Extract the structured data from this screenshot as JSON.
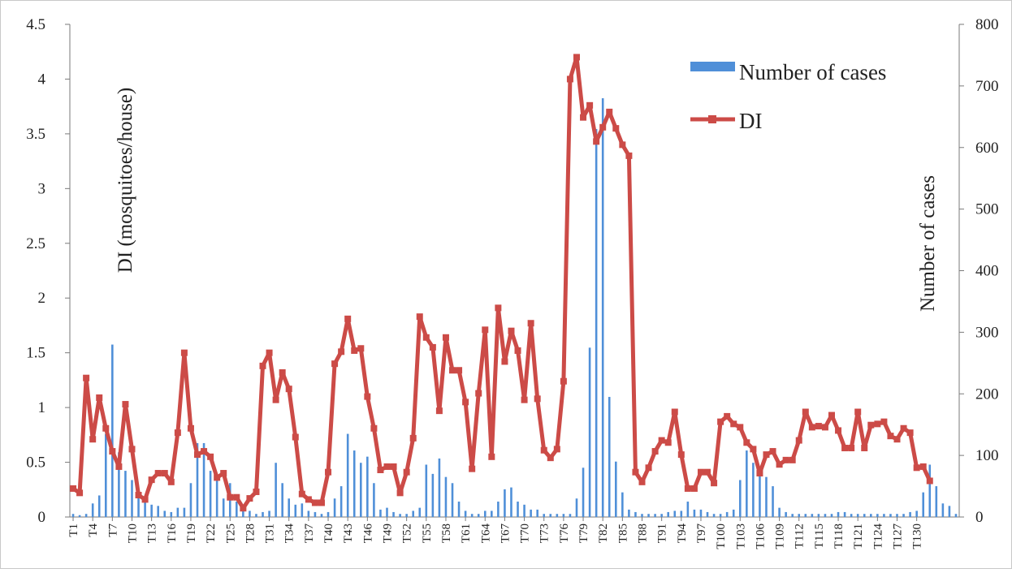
{
  "chart_data": {
    "type": "bar+line",
    "title": "",
    "y_left_label": "DI (mosquitoes/house)",
    "y_right_label": "Number of cases",
    "y_left_range": [
      0,
      4.5
    ],
    "y_right_range": [
      0,
      800
    ],
    "y_left_ticks": [
      "0",
      "0.5",
      "1",
      "1.5",
      "2",
      "2.5",
      "3",
      "3.5",
      "4",
      "4.5"
    ],
    "y_right_ticks": [
      "0",
      "100",
      "200",
      "300",
      "400",
      "500",
      "600",
      "700",
      "800"
    ],
    "x_tick_labels": [
      "T1",
      "T4",
      "T7",
      "T10",
      "T13",
      "T16",
      "T19",
      "T22",
      "T25",
      "T28",
      "T31",
      "T34",
      "T37",
      "T40",
      "T43",
      "T46",
      "T49",
      "T52",
      "T55",
      "T58",
      "T61",
      "T64",
      "T67",
      "T70",
      "T73",
      "T76",
      "T79",
      "T82",
      "T85",
      "T88",
      "T91",
      "T94",
      "T97",
      "T100",
      "T103",
      "T106",
      "T109",
      "T112",
      "T115",
      "T118",
      "T121",
      "T124",
      "T127",
      "T130"
    ],
    "legend": {
      "position": "top-right",
      "entries": [
        "Number of cases",
        "DI"
      ]
    },
    "colors": {
      "bars": "#4f8fd8",
      "line": "#cc4b47"
    },
    "series": [
      {
        "name": "Number of cases",
        "kind": "bar",
        "axis": "right",
        "values": [
          5,
          3,
          5,
          22,
          35,
          135,
          280,
          105,
          75,
          60,
          32,
          28,
          20,
          18,
          10,
          8,
          15,
          15,
          55,
          120,
          120,
          75,
          65,
          30,
          55,
          25,
          18,
          10,
          5,
          8,
          10,
          88,
          55,
          30,
          20,
          22,
          10,
          8,
          5,
          8,
          30,
          50,
          135,
          108,
          88,
          98,
          55,
          12,
          15,
          8,
          5,
          5,
          10,
          15,
          85,
          70,
          95,
          65,
          55,
          25,
          10,
          5,
          5,
          10,
          10,
          25,
          45,
          48,
          25,
          20,
          12,
          12,
          5,
          5,
          5,
          5,
          5,
          30,
          80,
          275,
          630,
          680,
          195,
          90,
          40,
          12,
          8,
          5,
          5,
          5,
          5,
          8,
          10,
          10,
          25,
          12,
          12,
          8,
          5,
          5,
          8,
          12,
          60,
          108,
          88,
          75,
          65,
          50,
          15,
          8,
          5,
          5,
          5,
          5,
          5,
          5,
          5,
          8,
          8,
          5,
          5,
          5,
          5,
          5,
          5,
          5,
          5,
          5,
          8,
          10,
          40,
          85,
          50,
          22,
          18,
          5
        ]
      },
      {
        "name": "DI",
        "kind": "line",
        "axis": "left",
        "values": [
          0.26,
          0.22,
          1.27,
          0.71,
          1.09,
          0.81,
          0.6,
          0.46,
          1.03,
          0.62,
          0.2,
          0.16,
          0.34,
          0.4,
          0.4,
          0.32,
          0.77,
          1.5,
          0.81,
          0.57,
          0.6,
          0.55,
          0.36,
          0.4,
          0.18,
          0.18,
          0.08,
          0.17,
          0.23,
          1.38,
          1.5,
          1.07,
          1.32,
          1.17,
          0.73,
          0.21,
          0.16,
          0.13,
          0.13,
          0.41,
          1.4,
          1.51,
          1.81,
          1.52,
          1.54,
          1.1,
          0.81,
          0.43,
          0.46,
          0.46,
          0.22,
          0.41,
          0.72,
          1.83,
          1.64,
          1.55,
          0.97,
          1.64,
          1.34,
          1.34,
          1.05,
          0.44,
          1.13,
          1.71,
          0.55,
          1.91,
          1.42,
          1.7,
          1.52,
          1.07,
          1.77,
          1.08,
          0.61,
          0.54,
          0.62,
          1.24,
          4.0,
          4.2,
          3.65,
          3.76,
          3.43,
          3.56,
          3.7,
          3.55,
          3.4,
          3.3,
          0.41,
          0.32,
          0.45,
          0.6,
          0.7,
          0.68,
          0.96,
          0.57,
          0.26,
          0.26,
          0.41,
          0.41,
          0.31,
          0.87,
          0.92,
          0.85,
          0.82,
          0.68,
          0.62,
          0.4,
          0.57,
          0.6,
          0.48,
          0.52,
          0.52,
          0.7,
          0.96,
          0.82,
          0.83,
          0.82,
          0.93,
          0.79,
          0.63,
          0.63,
          0.96,
          0.63,
          0.84,
          0.85,
          0.87,
          0.74,
          0.71,
          0.81,
          0.77,
          0.45,
          0.46,
          0.33
        ]
      }
    ]
  }
}
